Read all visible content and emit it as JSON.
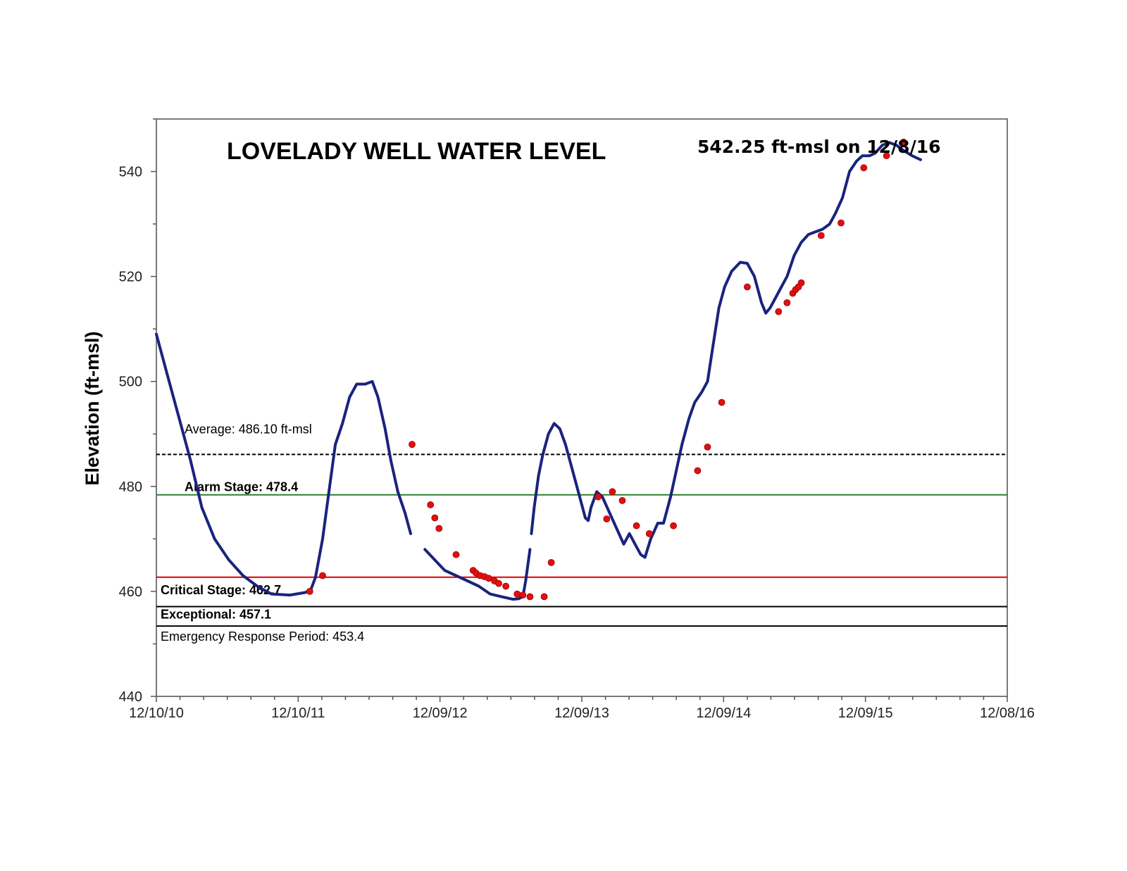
{
  "chart_data": {
    "type": "line",
    "title": "LOVELADY WELL WATER LEVEL",
    "subtitle": "542.25 ft-msl on 12/8/16",
    "xlabel": "",
    "ylabel": "Elevation (ft-msl)",
    "ylim": [
      440,
      550
    ],
    "yticks": [
      440,
      460,
      480,
      500,
      520,
      540
    ],
    "xticks": [
      "12/10/10",
      "12/10/11",
      "12/09/12",
      "12/09/13",
      "12/09/14",
      "12/09/15",
      "12/08/16"
    ],
    "x_range_years": [
      2010.94,
      2016.93
    ],
    "grid": false,
    "legend": "none",
    "reference_lines": [
      {
        "label": "Average: 486.10 ft-msl",
        "value": 486.1,
        "color": "#000000",
        "dashed": true,
        "bold": false
      },
      {
        "label": "Alarm Stage: 478.4",
        "value": 478.4,
        "color": "#2e7d32",
        "dashed": false,
        "bold": true
      },
      {
        "label": "Critical Stage: 462.7",
        "value": 462.7,
        "color": "#e00000",
        "dashed": false,
        "bold": true
      },
      {
        "label": "Exceptional: 457.1",
        "value": 457.1,
        "color": "#000000",
        "dashed": false,
        "bold": true
      },
      {
        "label": "Emergency Response Period: 453.4",
        "value": 453.4,
        "color": "#000000",
        "dashed": false,
        "bold": false
      }
    ],
    "series": [
      {
        "color": "#1a237e",
        "line_segments": [
          [
            [
              2010.94,
              509
            ],
            [
              2011.02,
              501
            ],
            [
              2011.1,
              493
            ],
            [
              2011.18,
              485
            ],
            [
              2011.26,
              476
            ],
            [
              2011.35,
              470
            ],
            [
              2011.45,
              466
            ],
            [
              2011.55,
              463
            ],
            [
              2011.65,
              461
            ],
            [
              2011.75,
              459.5
            ],
            [
              2011.88,
              459.3
            ],
            [
              2011.99,
              459.8
            ],
            [
              2012.03,
              460.5
            ],
            [
              2012.06,
              462.7
            ],
            [
              2012.11,
              470
            ],
            [
              2012.16,
              480
            ],
            [
              2012.2,
              488
            ],
            [
              2012.25,
              492
            ],
            [
              2012.3,
              497
            ],
            [
              2012.35,
              499.5
            ],
            [
              2012.41,
              499.5
            ],
            [
              2012.46,
              500
            ],
            [
              2012.5,
              497
            ],
            [
              2012.55,
              491
            ],
            [
              2012.59,
              485
            ],
            [
              2012.64,
              479
            ],
            [
              2012.69,
              475
            ],
            [
              2012.73,
              471
            ]
          ],
          [
            [
              2012.83,
              468
            ],
            [
              2012.9,
              466
            ],
            [
              2012.97,
              464
            ],
            [
              2013.05,
              463
            ],
            [
              2013.13,
              462
            ],
            [
              2013.21,
              461
            ],
            [
              2013.29,
              459.5
            ],
            [
              2013.37,
              459
            ],
            [
              2013.45,
              458.5
            ],
            [
              2013.49,
              458.6
            ],
            [
              2013.52,
              459
            ],
            [
              2013.54,
              462
            ],
            [
              2013.57,
              468
            ]
          ],
          [
            [
              2013.58,
              471
            ],
            [
              2013.6,
              476
            ],
            [
              2013.63,
              482
            ],
            [
              2013.66,
              486
            ],
            [
              2013.7,
              490
            ],
            [
              2013.74,
              492
            ],
            [
              2013.78,
              491
            ],
            [
              2013.82,
              488
            ],
            [
              2013.86,
              484
            ],
            [
              2013.91,
              479
            ],
            [
              2013.96,
              474
            ],
            [
              2013.98,
              473.5
            ],
            [
              2014.0,
              476
            ],
            [
              2014.04,
              479
            ],
            [
              2014.08,
              478
            ],
            [
              2014.13,
              475
            ],
            [
              2014.18,
              472
            ],
            [
              2014.23,
              469
            ],
            [
              2014.27,
              471
            ],
            [
              2014.31,
              469
            ],
            [
              2014.35,
              467
            ],
            [
              2014.38,
              466.5
            ],
            [
              2014.42,
              470
            ],
            [
              2014.47,
              473
            ],
            [
              2014.51,
              473
            ],
            [
              2014.56,
              478
            ],
            [
              2014.6,
              483
            ],
            [
              2014.64,
              488
            ],
            [
              2014.69,
              493
            ],
            [
              2014.73,
              496
            ],
            [
              2014.78,
              498
            ],
            [
              2014.82,
              500
            ],
            [
              2014.86,
              507
            ],
            [
              2014.9,
              514
            ],
            [
              2014.94,
              518
            ],
            [
              2014.99,
              521
            ],
            [
              2015.05,
              522.7
            ],
            [
              2015.1,
              522.5
            ],
            [
              2015.15,
              520
            ],
            [
              2015.2,
              515
            ],
            [
              2015.23,
              513
            ],
            [
              2015.26,
              514
            ],
            [
              2015.3,
              516
            ],
            [
              2015.34,
              518
            ],
            [
              2015.38,
              520
            ],
            [
              2015.43,
              524
            ],
            [
              2015.48,
              526.5
            ],
            [
              2015.53,
              528
            ],
            [
              2015.58,
              528.5
            ],
            [
              2015.63,
              529
            ],
            [
              2015.68,
              530
            ],
            [
              2015.72,
              532
            ],
            [
              2015.77,
              535
            ],
            [
              2015.82,
              540
            ],
            [
              2015.87,
              542
            ],
            [
              2015.91,
              543
            ],
            [
              2015.96,
              543
            ],
            [
              2016.0,
              543.5
            ],
            [
              2016.05,
              545
            ],
            [
              2016.1,
              545.5
            ],
            [
              2016.15,
              545
            ],
            [
              2016.2,
              544
            ],
            [
              2016.26,
              543
            ],
            [
              2016.32,
              542.25
            ]
          ]
        ],
        "markers": [
          [
            2012.02,
            460
          ],
          [
            2012.11,
            463
          ],
          [
            2012.74,
            488
          ],
          [
            2012.87,
            476.5
          ],
          [
            2012.9,
            474
          ],
          [
            2012.93,
            472
          ],
          [
            2013.05,
            467
          ],
          [
            2013.17,
            464
          ],
          [
            2013.19,
            463.5
          ],
          [
            2013.22,
            463
          ],
          [
            2013.25,
            462.8
          ],
          [
            2013.28,
            462.5
          ],
          [
            2013.32,
            462
          ],
          [
            2013.35,
            461.5
          ],
          [
            2013.4,
            461
          ],
          [
            2013.48,
            459.5
          ],
          [
            2013.52,
            459.3
          ],
          [
            2013.57,
            459
          ],
          [
            2013.67,
            459
          ],
          [
            2013.72,
            465.5
          ],
          [
            2014.05,
            478
          ],
          [
            2014.11,
            473.8
          ],
          [
            2014.15,
            479
          ],
          [
            2014.22,
            477.3
          ],
          [
            2014.32,
            472.5
          ],
          [
            2014.41,
            471
          ],
          [
            2014.58,
            472.5
          ],
          [
            2014.75,
            483
          ],
          [
            2014.82,
            487.5
          ],
          [
            2014.92,
            496
          ],
          [
            2015.1,
            518
          ],
          [
            2015.32,
            513.3
          ],
          [
            2015.38,
            515
          ],
          [
            2015.42,
            516.8
          ],
          [
            2015.44,
            517.5
          ],
          [
            2015.46,
            518
          ],
          [
            2015.48,
            518.8
          ],
          [
            2015.62,
            527.8
          ],
          [
            2015.76,
            530.2
          ],
          [
            2015.92,
            540.7
          ],
          [
            2016.08,
            543
          ],
          [
            2016.2,
            545.6
          ]
        ]
      }
    ]
  }
}
